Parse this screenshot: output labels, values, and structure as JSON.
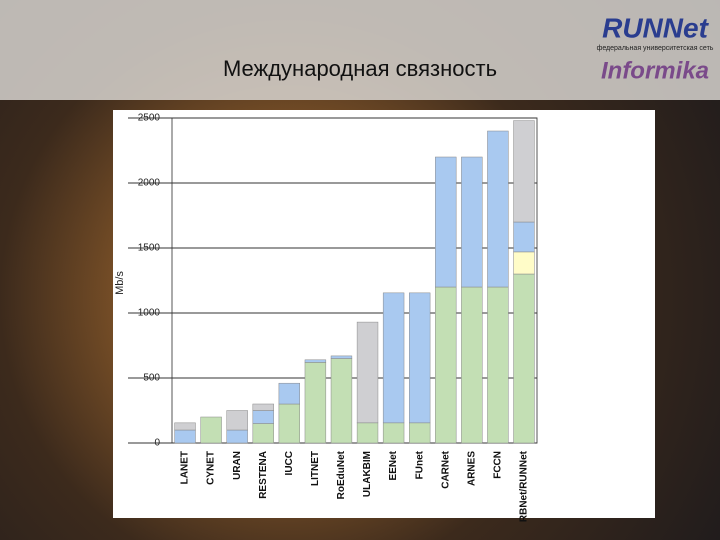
{
  "header": {
    "title": "Международная связность",
    "logo": "RUNNet",
    "logo_subtitle": "федеральная университетская сеть",
    "logo_brand": "Informika"
  },
  "chart_data": {
    "type": "stacked-bar",
    "y_label": "Mb/s",
    "categories": [
      "LANET",
      "CYNET",
      "URAN",
      "RESTENA",
      "IUCC",
      "LITNET",
      "RoEduNet",
      "ULAKBIM",
      "EENet",
      "FUnet",
      "CARNet",
      "ARNES",
      "FCCN",
      "RBNet/RUNNet"
    ],
    "series": [
      {
        "color": "#c3dfb4",
        "values": [
          null,
          200,
          null,
          150,
          300,
          620,
          650,
          155,
          155,
          155,
          1200,
          1200,
          1200,
          1300
        ]
      },
      {
        "color": "#fffcc8",
        "values": [
          null,
          null,
          null,
          null,
          null,
          null,
          null,
          null,
          null,
          null,
          null,
          null,
          null,
          170
        ]
      },
      {
        "color": "#a9c9f0",
        "values": [
          100,
          null,
          100,
          100,
          160,
          20,
          20,
          null,
          1000,
          1000,
          1000,
          1000,
          1200,
          230
        ]
      },
      {
        "color": "#cfcfd2",
        "values": [
          55,
          null,
          150,
          50,
          null,
          null,
          null,
          775,
          null,
          null,
          null,
          null,
          null,
          780
        ]
      }
    ],
    "ylim": [
      0,
      2500
    ],
    "yticks": [
      0,
      500,
      1000,
      1500,
      2000,
      2500
    ],
    "grid": true
  }
}
